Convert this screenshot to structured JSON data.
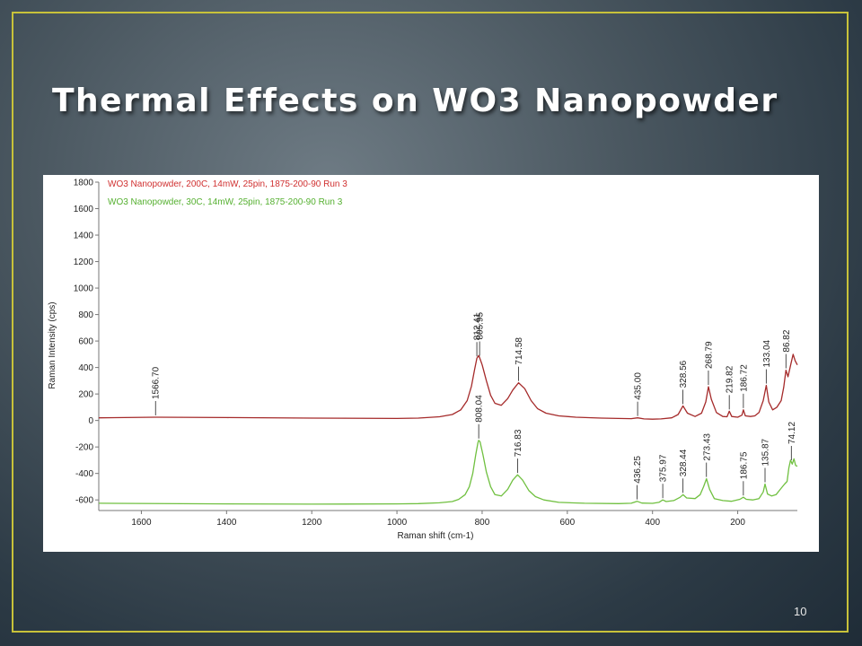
{
  "slide": {
    "title": "Thermal Effects on WO3 Nanopowder",
    "page_number": "10",
    "frame_color": "#c8c23a"
  },
  "chart_data": {
    "type": "line",
    "xlabel": "Raman shift (cm-1)",
    "ylabel": "Raman Intensity (cps)",
    "xlim": [
      1700,
      60
    ],
    "ylim": [
      -680,
      1800
    ],
    "x_reversed": true,
    "x_ticks": [
      1600,
      1400,
      1200,
      1000,
      800,
      600,
      400,
      200
    ],
    "y_ticks": [
      1800,
      1600,
      1400,
      1200,
      1000,
      800,
      600,
      400,
      200,
      0,
      -200,
      -400,
      -600
    ],
    "grid": false,
    "legend_position": "top-left",
    "series": [
      {
        "name": "WO3 Nanopowder, 200C, 14mW, 25pin, 1875-200-90 Run 3",
        "color": "#a52a2a",
        "points": [
          [
            1700,
            20
          ],
          [
            1566.7,
            25
          ],
          [
            1400,
            22
          ],
          [
            1200,
            18
          ],
          [
            1000,
            15
          ],
          [
            950,
            18
          ],
          [
            900,
            28
          ],
          [
            870,
            45
          ],
          [
            850,
            80
          ],
          [
            835,
            150
          ],
          [
            825,
            260
          ],
          [
            818,
            380
          ],
          [
            812.41,
            470
          ],
          [
            808,
            490
          ],
          [
            805.95,
            475
          ],
          [
            800,
            420
          ],
          [
            790,
            300
          ],
          [
            780,
            190
          ],
          [
            770,
            130
          ],
          [
            755,
            115
          ],
          [
            740,
            165
          ],
          [
            728,
            230
          ],
          [
            714.58,
            285
          ],
          [
            700,
            240
          ],
          [
            685,
            150
          ],
          [
            670,
            90
          ],
          [
            650,
            55
          ],
          [
            620,
            35
          ],
          [
            580,
            25
          ],
          [
            520,
            18
          ],
          [
            480,
            15
          ],
          [
            450,
            14
          ],
          [
            435,
            20
          ],
          [
            420,
            12
          ],
          [
            400,
            10
          ],
          [
            380,
            12
          ],
          [
            355,
            20
          ],
          [
            340,
            45
          ],
          [
            328.56,
            110
          ],
          [
            318,
            55
          ],
          [
            300,
            30
          ],
          [
            285,
            55
          ],
          [
            275,
            140
          ],
          [
            268.79,
            255
          ],
          [
            262,
            160
          ],
          [
            250,
            60
          ],
          [
            235,
            30
          ],
          [
            225,
            28
          ],
          [
            219.82,
            70
          ],
          [
            214,
            30
          ],
          [
            200,
            25
          ],
          [
            190,
            40
          ],
          [
            186.72,
            80
          ],
          [
            182,
            35
          ],
          [
            170,
            30
          ],
          [
            160,
            35
          ],
          [
            150,
            60
          ],
          [
            140,
            150
          ],
          [
            133.04,
            265
          ],
          [
            127,
            140
          ],
          [
            118,
            80
          ],
          [
            108,
            100
          ],
          [
            98,
            150
          ],
          [
            92,
            250
          ],
          [
            86.82,
            380
          ],
          [
            82,
            330
          ],
          [
            75,
            430
          ],
          [
            70,
            500
          ],
          [
            65,
            450
          ],
          [
            60,
            420
          ]
        ]
      },
      {
        "name": "WO3 Nanopowder, 30C, 14mW, 25pin, 1875-200-90 Run 3",
        "color": "#70c040",
        "points": [
          [
            1700,
            -625
          ],
          [
            1400,
            -630
          ],
          [
            1200,
            -632
          ],
          [
            1000,
            -630
          ],
          [
            950,
            -628
          ],
          [
            900,
            -622
          ],
          [
            870,
            -612
          ],
          [
            855,
            -595
          ],
          [
            840,
            -560
          ],
          [
            830,
            -500
          ],
          [
            822,
            -400
          ],
          [
            815,
            -260
          ],
          [
            810,
            -170
          ],
          [
            808.04,
            -150
          ],
          [
            805,
            -160
          ],
          [
            798,
            -260
          ],
          [
            790,
            -390
          ],
          [
            780,
            -500
          ],
          [
            770,
            -560
          ],
          [
            755,
            -570
          ],
          [
            740,
            -520
          ],
          [
            728,
            -450
          ],
          [
            716.83,
            -410
          ],
          [
            705,
            -450
          ],
          [
            690,
            -530
          ],
          [
            675,
            -575
          ],
          [
            655,
            -600
          ],
          [
            620,
            -618
          ],
          [
            560,
            -625
          ],
          [
            480,
            -628
          ],
          [
            450,
            -625
          ],
          [
            436.25,
            -610
          ],
          [
            425,
            -624
          ],
          [
            400,
            -626
          ],
          [
            385,
            -618
          ],
          [
            375.97,
            -600
          ],
          [
            368,
            -612
          ],
          [
            350,
            -605
          ],
          [
            335,
            -580
          ],
          [
            328.44,
            -560
          ],
          [
            320,
            -585
          ],
          [
            300,
            -590
          ],
          [
            288,
            -560
          ],
          [
            280,
            -500
          ],
          [
            273.43,
            -440
          ],
          [
            266,
            -520
          ],
          [
            255,
            -590
          ],
          [
            235,
            -605
          ],
          [
            215,
            -610
          ],
          [
            195,
            -595
          ],
          [
            186.75,
            -580
          ],
          [
            180,
            -595
          ],
          [
            165,
            -600
          ],
          [
            150,
            -590
          ],
          [
            140,
            -540
          ],
          [
            135.87,
            -480
          ],
          [
            130,
            -555
          ],
          [
            120,
            -570
          ],
          [
            110,
            -560
          ],
          [
            100,
            -520
          ],
          [
            90,
            -480
          ],
          [
            84,
            -460
          ],
          [
            80,
            -360
          ],
          [
            76,
            -300
          ],
          [
            72,
            -330
          ],
          [
            68,
            -290
          ],
          [
            64,
            -340
          ],
          [
            60,
            -345
          ]
        ]
      }
    ],
    "annotations": {
      "series_200C": [
        "1566.70",
        "812.41",
        "805.95",
        "714.58",
        "435.00",
        "328.56",
        "268.79",
        "219.82",
        "186.72",
        "133.04",
        "86.82"
      ],
      "series_30C": [
        "808.04",
        "716.83",
        "436.25",
        "375.97",
        "328.44",
        "273.43",
        "186.75",
        "135.87",
        "74.12"
      ]
    }
  }
}
